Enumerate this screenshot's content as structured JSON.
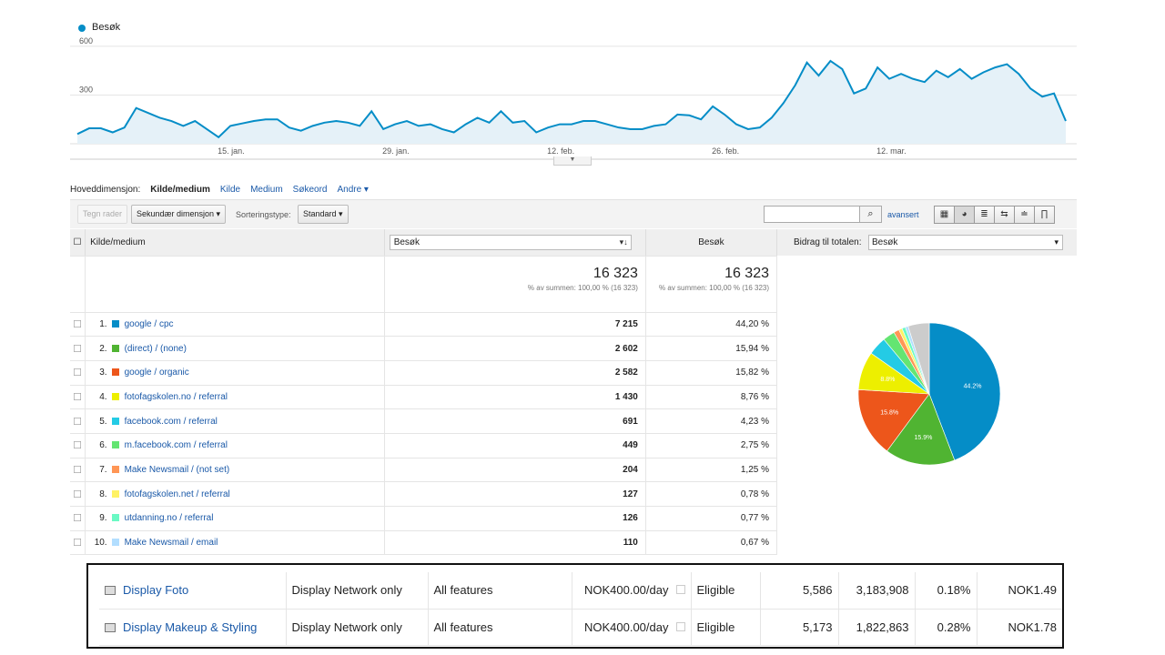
{
  "chart_data": {
    "type": "area",
    "legend": "Besøk",
    "yticks": [
      300,
      600
    ],
    "ylim": [
      0,
      650
    ],
    "xtick_labels": [
      "15. jan.",
      "29. jan.",
      "12. feb.",
      "26. feb.",
      "12. mar."
    ],
    "xtick_index": [
      13,
      27,
      41,
      55,
      69
    ],
    "color": "#058dc7",
    "values": [
      60,
      95,
      95,
      70,
      100,
      220,
      190,
      160,
      140,
      110,
      140,
      90,
      40,
      110,
      125,
      140,
      150,
      150,
      100,
      80,
      110,
      130,
      140,
      130,
      110,
      200,
      90,
      120,
      140,
      110,
      120,
      90,
      70,
      120,
      160,
      130,
      200,
      130,
      140,
      70,
      100,
      120,
      120,
      140,
      140,
      120,
      100,
      90,
      90,
      110,
      120,
      180,
      175,
      150,
      230,
      180,
      120,
      90,
      100,
      160,
      250,
      360,
      500,
      420,
      510,
      460,
      310,
      340,
      470,
      400,
      430,
      400,
      380,
      450,
      410,
      460,
      400,
      440,
      470,
      490,
      430,
      340,
      290,
      310,
      140
    ]
  },
  "dimension_bar": {
    "label": "Hoveddimensjon:",
    "active": "Kilde/medium",
    "links": [
      "Kilde",
      "Medium",
      "Søkeord"
    ],
    "more": "Andre ▾"
  },
  "toolbar": {
    "plot_rows": "Tegn rader",
    "secondary_dimension": "Sekundær dimensjon ▾",
    "sort_label": "Sorteringstype:",
    "sort_value": "Standard ▾",
    "search_placeholder": "",
    "advanced": "avansert",
    "views": [
      "▦",
      "◕",
      "≣",
      "⇆",
      "≐",
      "∏"
    ]
  },
  "table": {
    "col_source": "Kilde/medium",
    "col_metric1": "Besøk",
    "col_metric2": "Besøk",
    "total1": "16 323",
    "total1_sub": "% av summen: 100,00 % (16 323)",
    "total2": "16 323",
    "total2_sub": "% av summen: 100,00 % (16 323)",
    "rows": [
      {
        "idx": "1.",
        "source": "google / cpc",
        "visits": "7 215",
        "pct": "44,20 %",
        "color": "#058dc7"
      },
      {
        "idx": "2.",
        "source": "(direct) / (none)",
        "visits": "2 602",
        "pct": "15,94 %",
        "color": "#50b432"
      },
      {
        "idx": "3.",
        "source": "google / organic",
        "visits": "2 582",
        "pct": "15,82 %",
        "color": "#ed561b"
      },
      {
        "idx": "4.",
        "source": "fotofagskolen.no / referral",
        "visits": "1 430",
        "pct": "8,76 %",
        "color": "#edef00"
      },
      {
        "idx": "5.",
        "source": "facebook.com / referral",
        "visits": "691",
        "pct": "4,23 %",
        "color": "#24cbe5"
      },
      {
        "idx": "6.",
        "source": "m.facebook.com / referral",
        "visits": "449",
        "pct": "2,75 %",
        "color": "#64e572"
      },
      {
        "idx": "7.",
        "source": "Make Newsmail / (not set)",
        "visits": "204",
        "pct": "1,25 %",
        "color": "#ff9655"
      },
      {
        "idx": "8.",
        "source": "fotofagskolen.net / referral",
        "visits": "127",
        "pct": "0,78 %",
        "color": "#fff263"
      },
      {
        "idx": "9.",
        "source": "utdanning.no / referral",
        "visits": "126",
        "pct": "0,77 %",
        "color": "#6af9c4"
      },
      {
        "idx": "10.",
        "source": "Make Newsmail / email",
        "visits": "110",
        "pct": "0,67 %",
        "color": "#b2deff"
      }
    ],
    "other_color": "#cccccc"
  },
  "pie": {
    "title": "Bidrag til totalen:",
    "metric": "Besøk",
    "labels": [
      "44.2%",
      "15.9%",
      "15.8%",
      "8.8%"
    ]
  },
  "ads": [
    {
      "name": "Display Foto",
      "network": "Display Network only",
      "features": "All features",
      "budget": "NOK400.00/day",
      "status": "Eligible",
      "clicks": "5,586",
      "impressions": "3,183,908",
      "ctr": "0.18%",
      "cpc": "NOK1.49"
    },
    {
      "name": "Display Makeup & Styling",
      "network": "Display Network only",
      "features": "All features",
      "budget": "NOK400.00/day",
      "status": "Eligible",
      "clicks": "5,173",
      "impressions": "1,822,863",
      "ctr": "0.28%",
      "cpc": "NOK1.78"
    }
  ]
}
